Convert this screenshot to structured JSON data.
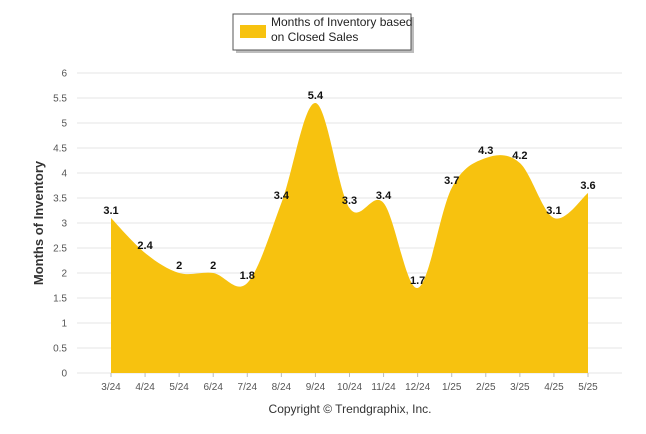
{
  "chart_data": {
    "type": "area",
    "categories": [
      "3/24",
      "4/24",
      "5/24",
      "6/24",
      "7/24",
      "8/24",
      "9/24",
      "10/24",
      "11/24",
      "12/24",
      "1/25",
      "2/25",
      "3/25",
      "4/25",
      "5/25"
    ],
    "series": [
      {
        "name": "Months of Inventory based on Closed Sales",
        "legend_lines": [
          "Months of Inventory based",
          "on Closed Sales"
        ],
        "values": [
          3.1,
          2.4,
          2,
          2,
          1.8,
          3.4,
          5.4,
          3.3,
          3.4,
          1.7,
          3.7,
          4.3,
          4.2,
          3.1,
          3.6
        ],
        "data_labels": [
          "3.1",
          "2.4",
          "2",
          "2",
          "1.8",
          "3.4",
          "5.4",
          "3.3",
          "3.4",
          "1.7",
          "3.7",
          "4.3",
          "4.2",
          "3.1",
          "3.6"
        ],
        "color": "#f7c20f"
      }
    ],
    "ylabel": "Months of Inventory",
    "ylim": [
      0,
      6
    ],
    "yticks": [
      "0",
      "0.5",
      "1",
      "1.5",
      "2",
      "2.5",
      "3",
      "3.5",
      "4",
      "4.5",
      "5",
      "5.5",
      "6"
    ],
    "grid": true,
    "legend_position": "top-center"
  },
  "footer": {
    "copyright": "Copyright © Trendgraphix, Inc."
  }
}
